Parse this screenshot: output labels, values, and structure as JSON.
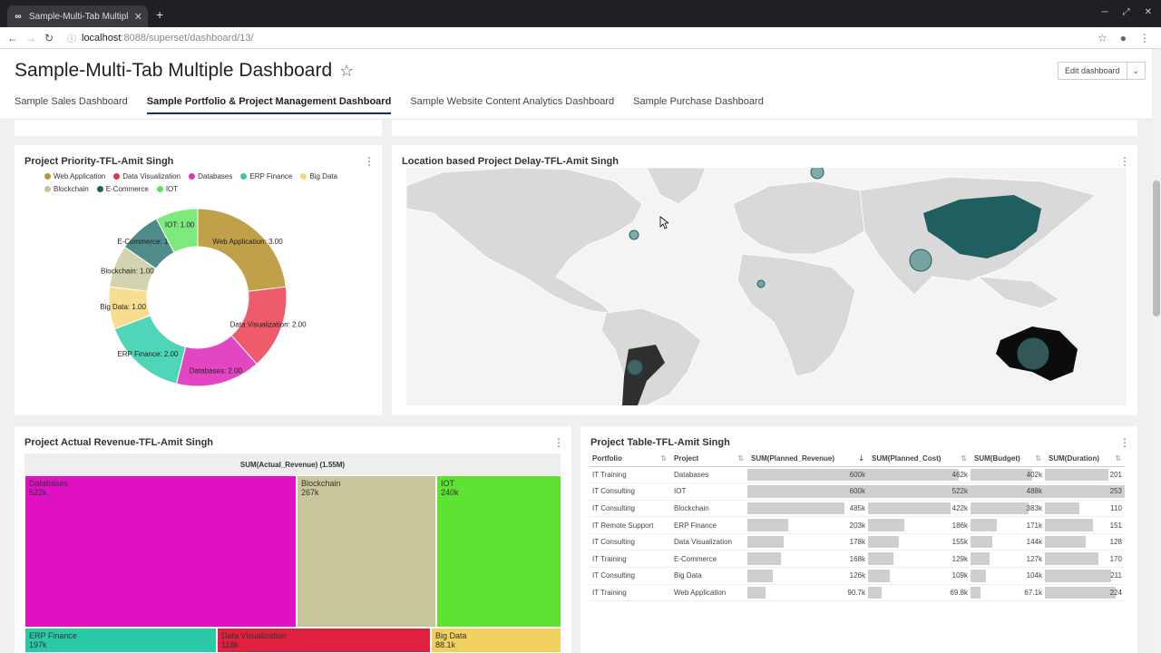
{
  "browser": {
    "tab_title": "Sample-Multi-Tab Multiple D",
    "favicon": "∞",
    "url_host": "localhost",
    "url_path": ":8088/superset/dashboard/13/"
  },
  "dashboard": {
    "title": "Sample-Multi-Tab Multiple Dashboard",
    "edit_label": "Edit dashboard",
    "tabs": [
      {
        "label": "Sample Sales Dashboard"
      },
      {
        "label": "Sample Portfolio & Project Management Dashboard"
      },
      {
        "label": "Sample Website Content Analytics Dashboard"
      },
      {
        "label": "Sample Purchase Dashboard"
      }
    ]
  },
  "priority": {
    "title": "Project Priority-TFL-Amit Singh",
    "legend": [
      {
        "label": "Web Application",
        "color": "#b8973f"
      },
      {
        "label": "Data Visualization",
        "color": "#e0354b"
      },
      {
        "label": "Databases",
        "color": "#d93bb4"
      },
      {
        "label": "ERP Finance",
        "color": "#3cc7a9"
      },
      {
        "label": "Big Data",
        "color": "#f3d67a"
      },
      {
        "label": "Blockchain",
        "color": "#c5c5a0"
      },
      {
        "label": "E-Commerce",
        "color": "#1f5f5f"
      },
      {
        "label": "IOT",
        "color": "#5de35d"
      }
    ]
  },
  "chart_data": [
    {
      "type": "pie",
      "title": "Project Priority-TFL-Amit Singh",
      "categories": [
        "Web Application",
        "Data Visualization",
        "Databases",
        "ERP Finance",
        "Big Data",
        "Blockchain",
        "E-Commerce",
        "IOT"
      ],
      "values": [
        3.0,
        2.0,
        2.0,
        2.0,
        1.0,
        1.0,
        1.0,
        1.0
      ],
      "labels": [
        "Web Application: 3.00",
        "Data Visualization: 2.00",
        "Databases: 2.00",
        "ERP Finance: 2.00",
        "Big Data: 1.00",
        "Blockchain: 1.00",
        "E-Commerce: 1.00",
        "IOT: 1.00"
      ],
      "colors": [
        "#c1a04a",
        "#ee5c6c",
        "#e246c3",
        "#4fd6b8",
        "#f6dd8f",
        "#d3d3b0",
        "#4f8b8b",
        "#7eea7e"
      ],
      "donut": true
    },
    {
      "type": "treemap",
      "title": "Project Actual Revenue-TFL-Amit Singh",
      "metric": "SUM(Actual_Revenue) (1.55M)",
      "categories": [
        "Databases",
        "Blockchain",
        "IOT",
        "ERP Finance",
        "Data Visualization",
        "Big Data"
      ],
      "values_label": [
        "522k",
        "267k",
        "240k",
        "197k",
        "118k",
        "88.1k"
      ],
      "colors": [
        "#e010c4",
        "#c9c59a",
        "#5ee332",
        "#2ac9a7",
        "#e0203f",
        "#f2d060"
      ]
    }
  ],
  "map": {
    "title": "Location based Project Delay-TFL-Amit Singh"
  },
  "revenue": {
    "title": "Project Actual Revenue-TFL-Amit Singh",
    "header": "SUM(Actual_Revenue) (1.55M)",
    "cells": [
      {
        "name": "Databases",
        "value": "522k"
      },
      {
        "name": "Blockchain",
        "value": "267k"
      },
      {
        "name": "IOT",
        "value": "240k"
      },
      {
        "name": "ERP Finance",
        "value": "197k"
      },
      {
        "name": "Data Visualization",
        "value": "118k"
      },
      {
        "name": "Big Data",
        "value": "88.1k"
      }
    ]
  },
  "table": {
    "title": "Project Table-TFL-Amit Singh",
    "columns": [
      "Portfolio",
      "Project",
      "SUM(Planned_Revenue)",
      "SUM(Planned_Cost)",
      "SUM(Budget)",
      "SUM(Duration)"
    ],
    "rows": [
      [
        "IT Training",
        "Databases",
        "600k",
        "462k",
        "402k",
        "201"
      ],
      [
        "IT Consulting",
        "IOT",
        "600k",
        "522k",
        "488k",
        "253"
      ],
      [
        "IT Consulting",
        "Blockchain",
        "485k",
        "422k",
        "383k",
        "110"
      ],
      [
        "IT Remote Support",
        "ERP Finance",
        "203k",
        "186k",
        "171k",
        "151"
      ],
      [
        "IT Consulting",
        "Data Visualization",
        "178k",
        "155k",
        "144k",
        "128"
      ],
      [
        "IT Training",
        "E-Commerce",
        "168k",
        "129k",
        "127k",
        "170"
      ],
      [
        "IT Consulting",
        "Big Data",
        "126k",
        "109k",
        "104k",
        "211"
      ],
      [
        "IT Training",
        "Web Application",
        "90.7k",
        "69.8k",
        "67.1k",
        "224"
      ]
    ],
    "fractions": [
      [
        1.0,
        0.885,
        0.824,
        0.794
      ],
      [
        1.0,
        1.0,
        1.0,
        1.0
      ],
      [
        0.808,
        0.808,
        0.785,
        0.435
      ],
      [
        0.338,
        0.356,
        0.35,
        0.597
      ],
      [
        0.297,
        0.297,
        0.295,
        0.506
      ],
      [
        0.28,
        0.247,
        0.26,
        0.672
      ],
      [
        0.21,
        0.209,
        0.213,
        0.834
      ],
      [
        0.151,
        0.134,
        0.137,
        0.885
      ]
    ]
  }
}
